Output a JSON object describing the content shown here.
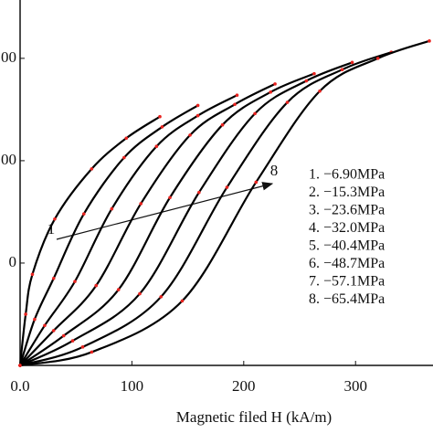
{
  "chart_data": {
    "type": "line",
    "x_label": "Magnetic  filed H (kA/m)",
    "xlim": [
      0,
      366
    ],
    "ylim": [
      0,
      357
    ],
    "xticks": [
      {
        "value": 0,
        "label": "0.0"
      },
      100,
      200,
      300
    ],
    "yticks": [
      {
        "value": 100,
        "label": "0"
      },
      {
        "value": 200,
        "label": "00"
      },
      {
        "value": 300,
        "label": "00"
      }
    ],
    "marker_color": "#e8231f",
    "annotations": [
      "1",
      "8"
    ],
    "series": [
      {
        "name": "1. −6.90MPa",
        "color": "#000000",
        "x": [
          0,
          5,
          11,
          31,
          64,
          95,
          125
        ],
        "values": [
          0,
          50,
          89,
          143,
          192,
          222,
          243
        ]
      },
      {
        "name": "2. −15.3MPa",
        "color": "#000000",
        "x": [
          0,
          13,
          30,
          57,
          93,
          127,
          159
        ],
        "values": [
          0,
          45,
          85,
          148,
          203,
          233,
          254
        ]
      },
      {
        "name": "3. −23.6MPa",
        "color": "#000000",
        "x": [
          0,
          22,
          49,
          82,
          122,
          159,
          194
        ],
        "values": [
          0,
          39,
          82,
          153,
          214,
          244,
          264
        ]
      },
      {
        "name": "4. −32.0MPa",
        "color": "#000000",
        "x": [
          0,
          30,
          68,
          108,
          152,
          192,
          228
        ],
        "values": [
          0,
          34,
          78,
          158,
          225,
          255,
          275
        ]
      },
      {
        "name": "5. −40.4MPa",
        "color": "#000000",
        "x": [
          0,
          39,
          88,
          134,
          181,
          224,
          263
        ],
        "values": [
          0,
          29,
          74,
          164,
          235,
          267,
          285
        ]
      },
      {
        "name": "6. −48.7MPa",
        "color": "#000000",
        "x": [
          0,
          47,
          107,
          160,
          210,
          256,
          297
        ],
        "values": [
          0,
          24,
          70,
          169,
          246,
          278,
          296
        ]
      },
      {
        "name": "7. −57.1MPa",
        "color": "#000000",
        "x": [
          0,
          56,
          126,
          185,
          239,
          288,
          332
        ],
        "values": [
          0,
          18,
          67,
          174,
          257,
          289,
          306
        ]
      },
      {
        "name": "8. −65.4MPa",
        "color": "#000000",
        "x": [
          0,
          64,
          145,
          211,
          268,
          320,
          366
        ],
        "values": [
          0,
          13,
          63,
          179,
          268,
          300,
          317
        ]
      }
    ]
  }
}
